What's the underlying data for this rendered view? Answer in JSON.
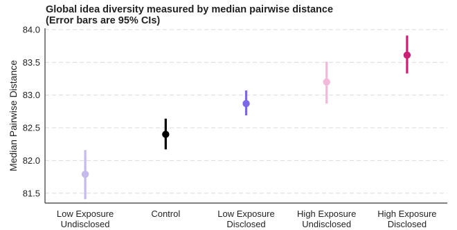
{
  "chart_data": {
    "type": "scatter",
    "title_lines": [
      "Global idea diversity measured by median pairwise distance",
      "(Error bars are 95% CIs)"
    ],
    "xlabel": "",
    "ylabel": "Median Pairwise Distance",
    "ylim": [
      81.35,
      84.02
    ],
    "yticks": [
      "81.5",
      "82.0",
      "82.5",
      "83.0",
      "83.5",
      "84.0"
    ],
    "grid": "horizontal-dashed",
    "categories": [
      {
        "lines": [
          "Low Exposure",
          "Undisclosed"
        ]
      },
      {
        "lines": [
          "Control"
        ]
      },
      {
        "lines": [
          "Low Exposure",
          "Disclosed"
        ]
      },
      {
        "lines": [
          "High Exposure",
          "Undisclosed"
        ]
      },
      {
        "lines": [
          "High Exposure",
          "Disclosed"
        ]
      }
    ],
    "points": [
      {
        "value": 81.79,
        "ci_low": 81.41,
        "ci_high": 82.16,
        "color": "#c5b9ee"
      },
      {
        "value": 82.4,
        "ci_low": 82.17,
        "ci_high": 82.64,
        "color": "#000000"
      },
      {
        "value": 82.87,
        "ci_low": 82.69,
        "ci_high": 83.07,
        "color": "#7b68e8"
      },
      {
        "value": 83.2,
        "ci_low": 82.87,
        "ci_high": 83.51,
        "color": "#f2b9d8"
      },
      {
        "value": 83.61,
        "ci_low": 83.33,
        "ci_high": 83.91,
        "color": "#cc1f78"
      }
    ]
  }
}
